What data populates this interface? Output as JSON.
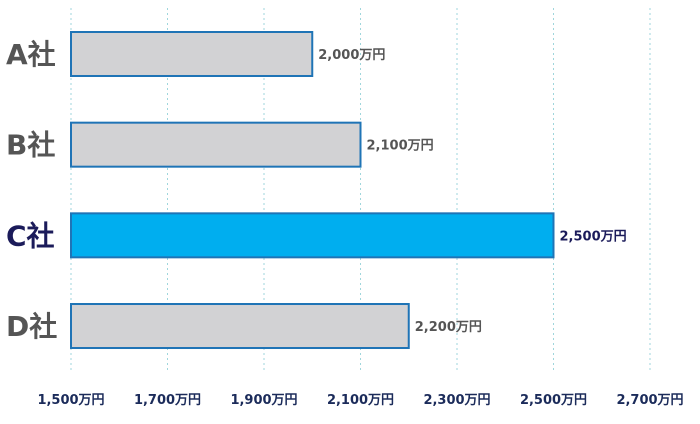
{
  "chart_data": {
    "type": "bar",
    "orientation": "horizontal",
    "categories": [
      "A社",
      "B社",
      "C社",
      "D社"
    ],
    "values": [
      2000,
      2100,
      2500,
      2200
    ],
    "value_labels": [
      "2,000万円",
      "2,100万円",
      "2,500万円",
      "2,200万円"
    ],
    "highlight_index": 2,
    "title": "",
    "xlabel": "",
    "ylabel": "",
    "xlim": [
      1500,
      2700
    ],
    "ticks": [
      1500,
      1700,
      1900,
      2100,
      2300,
      2500,
      2700
    ],
    "tick_labels": [
      "1,500万円",
      "1,700万円",
      "1,900万円",
      "2,100万円",
      "2,300万円",
      "2,500万円",
      "2,700万円"
    ],
    "grid": "vertical-dashed",
    "legend": "none"
  },
  "colors": {
    "bar_fill": "#d2d2d4",
    "bar_border": "#1f74b6",
    "highlight_fill": "#00aeef",
    "label_gray": "#555555",
    "label_navy": "#1b1b5a",
    "tick_text": "#1b2b5a",
    "grid": "#9fd6dc"
  }
}
